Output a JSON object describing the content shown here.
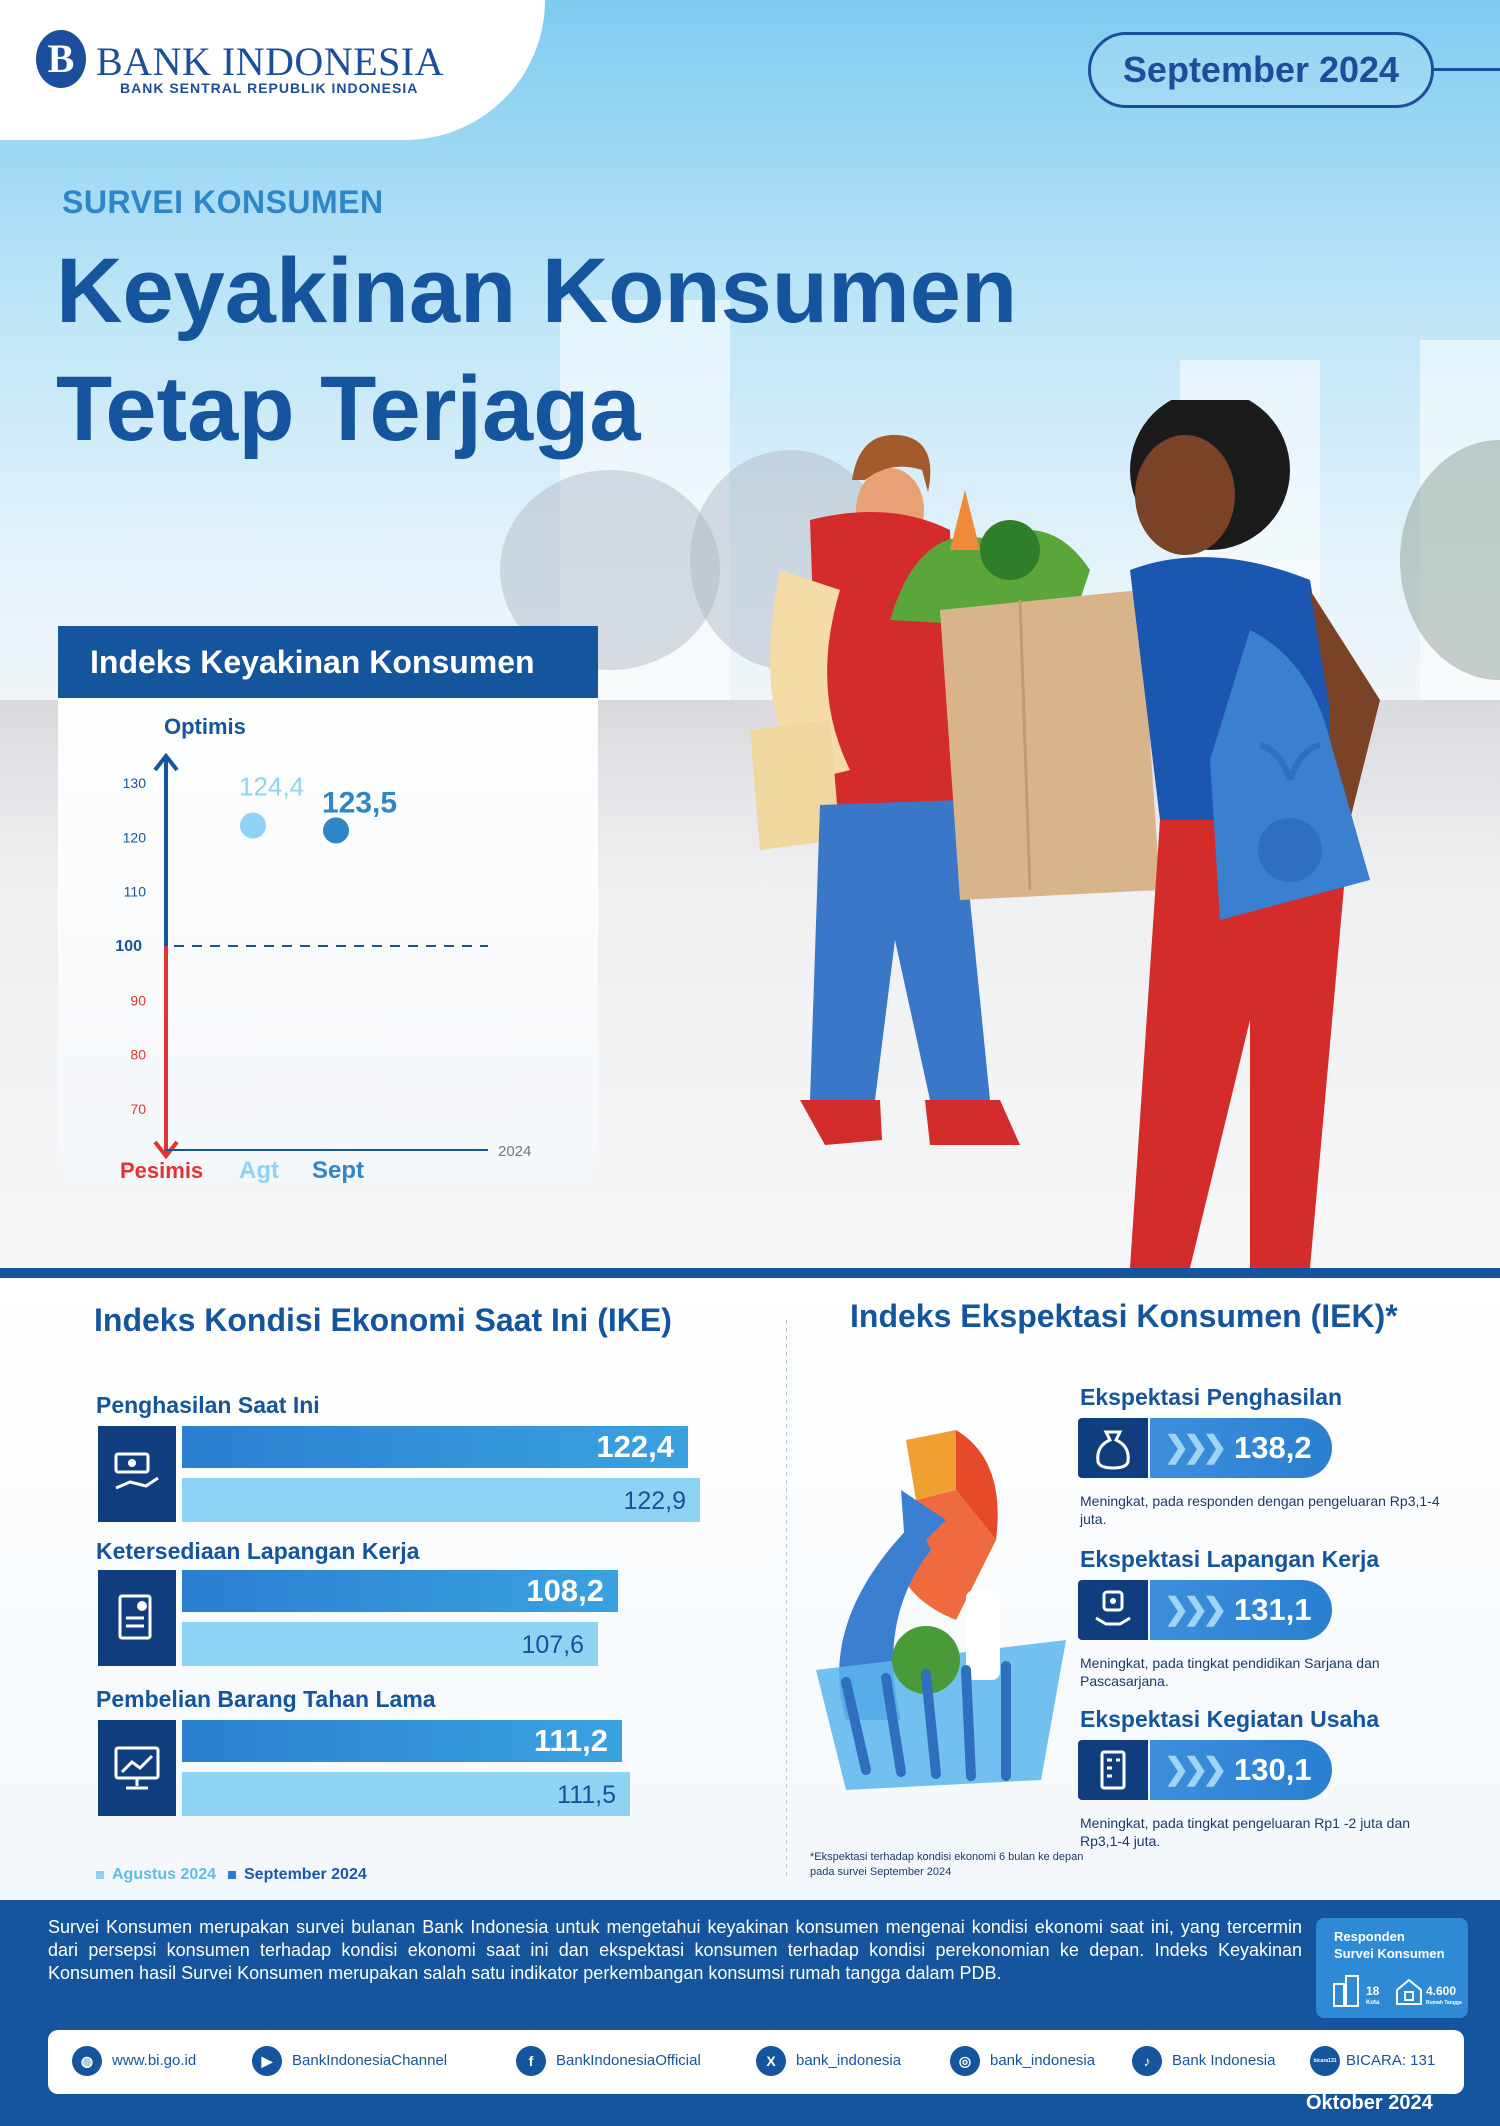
{
  "header": {
    "logo_mark": "B",
    "logo_name": "BANK INDONESIA",
    "logo_sub": "BANK SENTRAL REPUBLIK INDONESIA",
    "period": "September 2024"
  },
  "hero": {
    "survey_label": "SURVEI KONSUMEN",
    "headline_line1": "Keyakinan Konsumen",
    "headline_line2": "Tetap Terjaga"
  },
  "ikk_chart": {
    "title": "Indeks Keyakinan Konsumen",
    "top_label": "Optimis",
    "bottom_label": "Pesimis",
    "year_label": "2024",
    "ticks_upper": [
      "130",
      "120",
      "110"
    ],
    "baseline_tick": "100",
    "ticks_lower": [
      "90",
      "80",
      "70"
    ]
  },
  "chart_data": {
    "type": "scatter",
    "title": "Indeks Keyakinan Konsumen",
    "categories": [
      "Agt",
      "Sept"
    ],
    "values": [
      124.4,
      123.5
    ],
    "value_labels": [
      "124,4",
      "123,5"
    ],
    "baseline": 100,
    "ylim": [
      65,
      135
    ],
    "yticks": [
      70,
      80,
      90,
      100,
      110,
      120,
      130
    ],
    "colors": {
      "Agt": "#8fd3f4",
      "Sept": "#2e86c8",
      "optimis_axis": "#14559e",
      "pesimis_axis": "#e03434"
    }
  },
  "ike": {
    "title": "Indeks Kondisi Ekonomi Saat Ini (IKE)",
    "items": [
      {
        "label": "Penghasilan Saat Ini",
        "sept": "122,4",
        "aug": "122,9",
        "icon": "money-hand-icon",
        "sept_value": 122.4,
        "aug_value": 122.9
      },
      {
        "label": "Ketersediaan Lapangan Kerja",
        "sept": "108,2",
        "aug": "107,6",
        "icon": "job-document-icon",
        "sept_value": 108.2,
        "aug_value": 107.6
      },
      {
        "label": "Pembelian Barang Tahan Lama",
        "sept": "111,2",
        "aug": "111,5",
        "icon": "monitor-icon",
        "sept_value": 111.2,
        "aug_value": 111.5
      }
    ],
    "legend_aug": "Agustus 2024",
    "legend_sept": "September 2024"
  },
  "iek": {
    "title": "Indeks Ekspektasi Konsumen (IEK)*",
    "items": [
      {
        "label": "Ekspektasi Penghasilan",
        "value": "138,2",
        "note": "Meningkat, pada responden dengan pengeluaran Rp3,1-4 juta.",
        "icon": "money-bag-icon"
      },
      {
        "label": "Ekspektasi Lapangan Kerja",
        "value": "131,1",
        "note": "Meningkat, pada tingkat pendidikan Sarjana dan Pascasarjana.",
        "icon": "worker-icon"
      },
      {
        "label": "Ekspektasi Kegiatan Usaha",
        "value": "130,1",
        "note": "Meningkat, pada tingkat pengeluaran Rp1 -2  juta dan Rp3,1-4 juta.",
        "icon": "business-icon"
      }
    ],
    "footnote": "*Ekspektasi terhadap kondisi ekonomi 6 bulan ke depan pada survei September 2024"
  },
  "about": {
    "text": "Survei Konsumen merupakan survei bulanan Bank Indonesia untuk mengetahui keyakinan konsumen mengenai kondisi ekonomi saat ini, yang tercermin dari persepsi konsumen terhadap kondisi ekonomi saat ini dan ekspektasi konsumen terhadap kondisi perekonomian ke depan. Indeks Keyakinan Konsumen hasil Survei Konsumen merupakan salah satu indikator perkembangan konsumsi rumah tangga dalam PDB."
  },
  "respondents": {
    "title_line1": "Responden",
    "title_line2": "Survei Konsumen",
    "cities": "18",
    "cities_label": "Kota",
    "households": "4.600",
    "households_label": "Rumah Tangga"
  },
  "social": {
    "website": "www.bi.go.id",
    "youtube": "BankIndonesiaChannel",
    "facebook": "BankIndonesiaOfficial",
    "x": "bank_indonesia",
    "instagram": "bank_indonesia",
    "tiktok": "Bank Indonesia",
    "bicara_badge": "bicara131",
    "bicara": "BICARA: 131"
  },
  "footer": {
    "month": "Oktober 2024"
  }
}
